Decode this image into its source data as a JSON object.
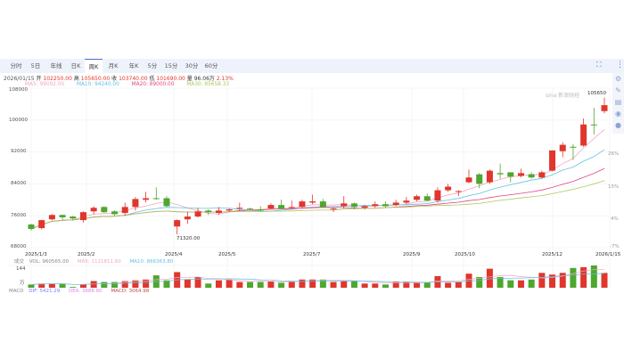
{
  "toolbar": {
    "tabs": [
      "分时",
      "5日",
      "年线",
      "日K",
      "周K",
      "月K",
      "年K",
      "5分",
      "15分",
      "30分",
      "60分"
    ],
    "active_tab": "周K",
    "icons": [
      "exit-fullscreen-icon",
      "more-vertical-icon"
    ]
  },
  "quote": {
    "date": "2026/01/15",
    "open_label": "开",
    "open": "102250.00",
    "high_label": "高",
    "high": "105650.00",
    "close_label": "收",
    "close": "103740.00",
    "low_label": "低",
    "low": "101690.00",
    "volume_label": "量",
    "volume": "96.06万",
    "change": "2.13%"
  },
  "ma": {
    "ma5": "MA5: 99092.00",
    "ma10": "MA10: 94240.00",
    "ma20": "MA20: 89000.00",
    "ma30": "MA30: 85658.33"
  },
  "colors": {
    "up": "#e0362c",
    "down": "#4ea72e",
    "ma5": "#f2a7bf",
    "ma10": "#63c0e2",
    "ma20": "#e2467f",
    "ma30": "#a9c95a",
    "accent": "#4a6fd0"
  },
  "side_icons": [
    "gear-icon",
    "pencil-icon",
    "note-icon",
    "weibo-icon",
    "wechat-icon"
  ],
  "watermark": "sina 新浪财经",
  "y_axis_labels": [
    "108000",
    "100000",
    "92000",
    "84000",
    "76000",
    "68000"
  ],
  "percent_labels": [
    "26%",
    "15%",
    "4%",
    "-7%"
  ],
  "date_labels": [
    "2025/1/3",
    "2025/2",
    "2025/4",
    "2025/5",
    "2025/7",
    "2025/9",
    "2025/10",
    "2025/12",
    "2026/1/15"
  ],
  "annotations": {
    "max": "105650",
    "min": "71320.00"
  },
  "volume_panel": {
    "title": "成交",
    "vol": "VOL: 960565.00",
    "ma5": "MA5: 1121811.60",
    "ma10": "MA10: 866363.80",
    "scale_top": "144",
    "unit": "万"
  },
  "macd": {
    "title": "MACD",
    "dif": "DIF: 5421.29",
    "dea": "DEA: 3888.80",
    "macd": "MACD: 3064.98"
  },
  "chart_data": {
    "type": "candlestick",
    "period": "weekly",
    "ylim": [
      68000,
      108000
    ],
    "ohlc": [
      [
        73800,
        74000,
        72300,
        72700
      ],
      [
        72900,
        75000,
        72600,
        74900
      ],
      [
        75100,
        76400,
        74800,
        76200
      ],
      [
        76200,
        76300,
        75000,
        75600
      ],
      [
        75800,
        76000,
        74900,
        75300
      ],
      [
        74900,
        77100,
        74300,
        76900
      ],
      [
        77100,
        78400,
        76400,
        78000
      ],
      [
        78200,
        78400,
        76700,
        76900
      ],
      [
        77100,
        77400,
        76000,
        76400
      ],
      [
        76700,
        79300,
        76000,
        78200
      ],
      [
        78200,
        80700,
        77300,
        80200
      ],
      [
        80000,
        82000,
        79300,
        80400
      ],
      [
        80400,
        83100,
        80000,
        80200
      ],
      [
        80400,
        80900,
        78200,
        78400
      ],
      [
        73300,
        75100,
        71320,
        74900
      ],
      [
        75100,
        77000,
        74000,
        75800
      ],
      [
        75800,
        78000,
        75600,
        77100
      ],
      [
        77300,
        77600,
        76200,
        76900
      ],
      [
        76700,
        78200,
        76200,
        77300
      ],
      [
        77300,
        77800,
        76900,
        77600
      ],
      [
        77800,
        79300,
        77300,
        78000
      ],
      [
        77800,
        78000,
        77300,
        77600
      ],
      [
        77600,
        78400,
        77100,
        77300
      ],
      [
        77800,
        79100,
        77600,
        78700
      ],
      [
        78700,
        80000,
        77600,
        77800
      ],
      [
        78000,
        79800,
        77800,
        78200
      ],
      [
        78200,
        80000,
        78000,
        79600
      ],
      [
        79300,
        81300,
        78900,
        79600
      ],
      [
        79600,
        80200,
        78000,
        78200
      ],
      [
        77600,
        78000,
        76900,
        77800
      ],
      [
        78400,
        80900,
        77800,
        79100
      ],
      [
        79100,
        79300,
        77600,
        78200
      ],
      [
        78000,
        78700,
        77600,
        78400
      ],
      [
        78400,
        79600,
        78000,
        78900
      ],
      [
        78900,
        79600,
        78000,
        78400
      ],
      [
        78700,
        80000,
        78400,
        79300
      ],
      [
        79300,
        80700,
        78900,
        79800
      ],
      [
        80000,
        81300,
        79600,
        80900
      ],
      [
        80900,
        81600,
        79600,
        79800
      ],
      [
        79800,
        83100,
        79300,
        82400
      ],
      [
        82400,
        84000,
        82000,
        83300
      ],
      [
        82000,
        82400,
        80900,
        82200
      ],
      [
        84400,
        87600,
        84200,
        85600
      ],
      [
        86400,
        86700,
        82900,
        84000
      ],
      [
        84400,
        87600,
        84000,
        87300
      ],
      [
        86700,
        89100,
        85300,
        86400
      ],
      [
        86900,
        86900,
        84400,
        85800
      ],
      [
        86000,
        87800,
        85600,
        86700
      ],
      [
        86400,
        86900,
        85300,
        85600
      ],
      [
        85600,
        87300,
        85300,
        86900
      ],
      [
        87300,
        92400,
        87100,
        92400
      ],
      [
        92200,
        94400,
        90700,
        93800
      ],
      [
        93300,
        94000,
        90000,
        93100
      ],
      [
        93600,
        100400,
        93300,
        98900
      ],
      [
        98900,
        103100,
        96400,
        98700
      ],
      [
        102250,
        105650,
        101690,
        103740
      ]
    ],
    "volume_wan": [
      21,
      27,
      27,
      27,
      5,
      21,
      43,
      37,
      37,
      43,
      48,
      53,
      80,
      48,
      101,
      53,
      69,
      27,
      48,
      53,
      37,
      37,
      37,
      43,
      32,
      43,
      53,
      53,
      53,
      37,
      43,
      43,
      27,
      27,
      21,
      37,
      37,
      37,
      37,
      75,
      32,
      37,
      91,
      69,
      123,
      69,
      48,
      48,
      53,
      96,
      85,
      96,
      128,
      133,
      144,
      96
    ]
  }
}
